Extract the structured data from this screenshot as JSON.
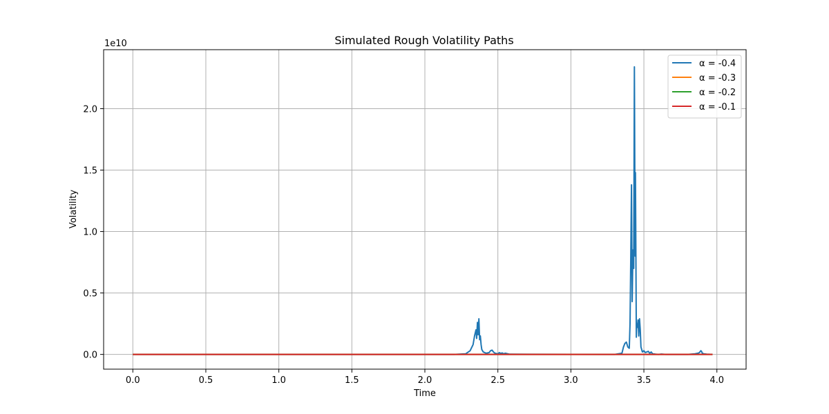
{
  "chart_data": {
    "type": "line",
    "title": "Simulated Rough Volatility Paths",
    "xlabel": "Time",
    "ylabel": "Volatility",
    "offset_label": "1e10",
    "xlim": [
      -0.2,
      4.2
    ],
    "ylim": [
      -1.2,
      24.8
    ],
    "xticks": [
      0.0,
      0.5,
      1.0,
      1.5,
      2.0,
      2.5,
      3.0,
      3.5,
      4.0
    ],
    "xtick_labels": [
      "0.0",
      "0.5",
      "1.0",
      "1.5",
      "2.0",
      "2.5",
      "3.0",
      "3.5",
      "4.0"
    ],
    "yticks": [
      0.0,
      5.0,
      10.0,
      15.0,
      20.0
    ],
    "ytick_labels": [
      "0.0",
      "0.5",
      "1.0",
      "1.5",
      "2.0"
    ],
    "y_unit_note": "values in units of 1e9 (axis labels scaled by 1e10)",
    "grid": true,
    "legend_position": "top-right",
    "series": [
      {
        "name": "α = -0.4",
        "color": "#1f77b4",
        "x": [
          0.0,
          2.2,
          2.28,
          2.31,
          2.33,
          2.34,
          2.35,
          2.355,
          2.36,
          2.365,
          2.37,
          2.375,
          2.38,
          2.385,
          2.39,
          2.4,
          2.42,
          2.44,
          2.45,
          2.46,
          2.47,
          2.48,
          2.5,
          2.51,
          2.52,
          2.53,
          2.54,
          2.55,
          2.58,
          3.3,
          3.35,
          3.36,
          3.37,
          3.38,
          3.39,
          3.4,
          3.405,
          3.41,
          3.415,
          3.42,
          3.425,
          3.43,
          3.435,
          3.44,
          3.442,
          3.445,
          3.448,
          3.45,
          3.455,
          3.46,
          3.465,
          3.47,
          3.475,
          3.48,
          3.49,
          3.5,
          3.51,
          3.52,
          3.53,
          3.54,
          3.55,
          3.56,
          3.58,
          3.6,
          3.62,
          3.65,
          3.8,
          3.85,
          3.87,
          3.88,
          3.89,
          3.895,
          3.9,
          3.91,
          3.93,
          3.97
        ],
        "values": [
          0.0,
          0.0,
          0.05,
          0.3,
          0.8,
          1.5,
          2.0,
          1.3,
          2.6,
          1.6,
          2.9,
          1.2,
          1.5,
          0.8,
          0.4,
          0.2,
          0.1,
          0.15,
          0.3,
          0.35,
          0.2,
          0.1,
          0.05,
          0.15,
          0.08,
          0.12,
          0.05,
          0.1,
          0.02,
          0.0,
          0.1,
          0.6,
          0.9,
          1.0,
          0.6,
          0.5,
          2.5,
          7.5,
          13.8,
          4.3,
          8.5,
          7.0,
          23.4,
          8.0,
          14.8,
          9.0,
          1.4,
          2.5,
          2.2,
          2.8,
          1.5,
          2.9,
          2.0,
          0.6,
          0.2,
          0.3,
          0.15,
          0.2,
          0.25,
          0.1,
          0.2,
          0.05,
          0.02,
          0.0,
          0.03,
          0.0,
          0.0,
          0.05,
          0.1,
          0.15,
          0.3,
          0.25,
          0.1,
          0.05,
          0.02,
          0.0
        ]
      },
      {
        "name": "α = -0.3",
        "color": "#ff7f0e",
        "x": [
          0.0,
          0.5,
          1.0,
          1.5,
          2.0,
          2.5,
          3.0,
          3.5,
          3.97
        ],
        "values": [
          0.0,
          0.0,
          0.0,
          0.0,
          0.0,
          0.0,
          0.0,
          0.0,
          0.0
        ]
      },
      {
        "name": "α = -0.2",
        "color": "#2ca02c",
        "x": [
          0.0,
          0.5,
          1.0,
          1.5,
          2.0,
          2.5,
          3.0,
          3.5,
          3.97
        ],
        "values": [
          0.0,
          0.0,
          0.0,
          0.0,
          0.0,
          0.0,
          0.0,
          0.0,
          0.0
        ]
      },
      {
        "name": "α = -0.1",
        "color": "#d62728",
        "x": [
          0.0,
          0.5,
          1.0,
          1.5,
          2.0,
          2.5,
          3.0,
          3.5,
          3.97
        ],
        "values": [
          0.0,
          0.0,
          0.0,
          0.0,
          0.0,
          0.0,
          0.0,
          0.0,
          0.0
        ]
      }
    ]
  }
}
